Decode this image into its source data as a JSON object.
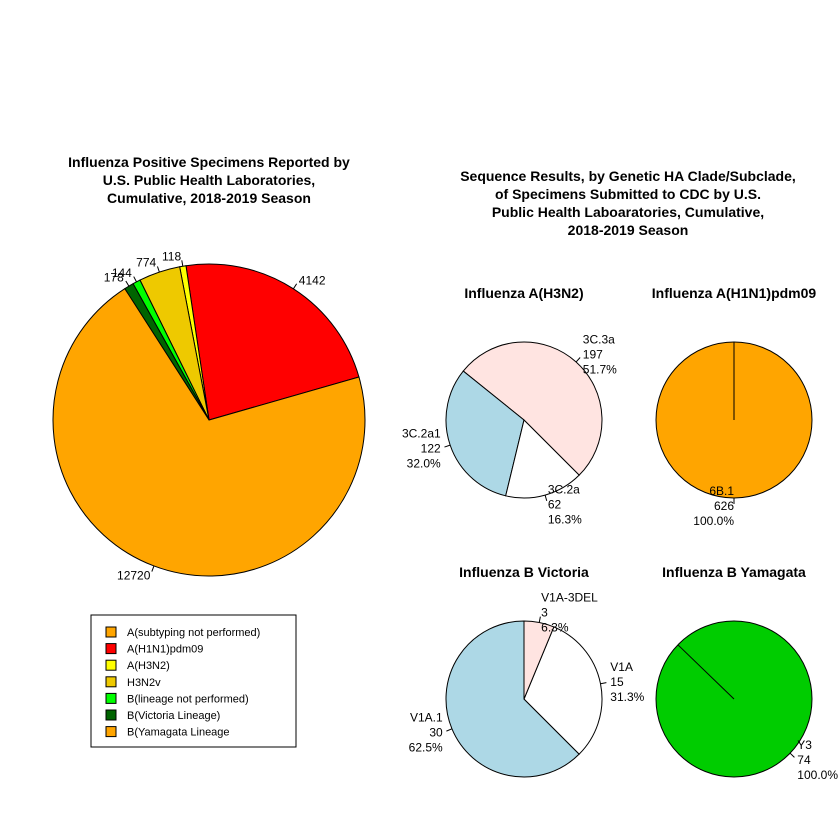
{
  "left_title": [
    "Influenza Positive Specimens Reported by",
    "U.S. Public Health Laboratories,",
    "Cumulative, 2018-2019 Season"
  ],
  "right_title": [
    "Sequence Results, by Genetic HA Clade/Subclade,",
    "of Specimens Submitted to CDC by U.S.",
    "Public Health Laboaratories, Cumulative,",
    "2018-2019 Season"
  ],
  "legend": [
    {
      "label": "A(subtyping not performed)",
      "color": "#FFA500"
    },
    {
      "label": "A(H1N1)pdm09",
      "color": "#FF0000"
    },
    {
      "label": "A(H3N2)",
      "color": "#FFFF00"
    },
    {
      "label": "H3N2v",
      "color": "#EEC900"
    },
    {
      "label": "B(lineage not performed)",
      "color": "#00FF00"
    },
    {
      "label": "B(Victoria Lineage)",
      "color": "#006400"
    },
    {
      "label": "B(Yamagata Lineage",
      "color": "#FFA500"
    }
  ],
  "chart_data": [
    {
      "type": "pie",
      "title": "Influenza Positive Specimens Reported by U.S. Public Health Laboratories, Cumulative, 2018-2019 Season",
      "slices": [
        {
          "label": "4142",
          "value": 4142,
          "color": "#FF0000"
        },
        {
          "label": "118",
          "value": 118,
          "color": "#FFFF00"
        },
        {
          "label": "774",
          "value": 774,
          "color": "#EEC900"
        },
        {
          "label": "144",
          "value": 144,
          "color": "#00FF00"
        },
        {
          "label": "178",
          "value": 178,
          "color": "#006400"
        },
        {
          "label": "12720",
          "value": 12720,
          "color": "#FFA500"
        }
      ]
    },
    {
      "type": "pie",
      "title": "Influenza A(H3N2)",
      "slices": [
        {
          "label": [
            "3C.3a",
            "197",
            "51.7%"
          ],
          "value": 197,
          "color": "#FFE4E1"
        },
        {
          "label": [
            "3C.2a1",
            "122",
            "32.0%"
          ],
          "value": 122,
          "color": "#ADD8E6"
        },
        {
          "label": [
            "3C.2a",
            "62",
            "16.3%"
          ],
          "value": 62,
          "color": "#FFFFFF"
        }
      ]
    },
    {
      "type": "pie",
      "title": "Influenza A(H1N1)pdm09",
      "slices": [
        {
          "label": [
            "6B.1",
            "626",
            "100.0%"
          ],
          "value": 626,
          "color": "#FFA500"
        }
      ]
    },
    {
      "type": "pie",
      "title": "Influenza B Victoria",
      "slices": [
        {
          "label": [
            "V1A.1",
            "30",
            "62.5%"
          ],
          "value": 30,
          "color": "#ADD8E6"
        },
        {
          "label": [
            "V1A",
            "15",
            "31.3%"
          ],
          "value": 15,
          "color": "#FFFFFF"
        },
        {
          "label": [
            "V1A-3DEL",
            "3",
            "6.3%"
          ],
          "value": 3,
          "color": "#FFE4E1"
        }
      ]
    },
    {
      "type": "pie",
      "title": "Influenza B Yamagata",
      "slices": [
        {
          "label": [
            "Y3",
            "74",
            "100.0%"
          ],
          "value": 74,
          "color": "#00CC00"
        }
      ]
    }
  ]
}
